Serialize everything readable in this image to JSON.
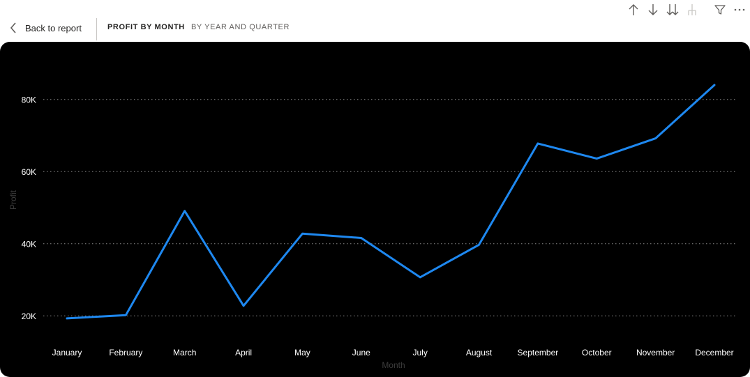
{
  "toolbar": {
    "back_label": "Back to report",
    "tabs": [
      {
        "label": "PROFIT BY MONTH",
        "active": true
      },
      {
        "label": "BY YEAR AND QUARTER",
        "active": false
      }
    ],
    "icons": [
      "arrow-up-icon",
      "arrow-down-icon",
      "double-arrow-down-icon",
      "expand-hierarchy-icon",
      "filter-icon",
      "more-options-icon"
    ]
  },
  "colors": {
    "background": "#000000",
    "line": "#1e88f0",
    "gridline": "#8a8a8a",
    "axis_text": "#ffffff",
    "axis_title": "#3c3c3c"
  },
  "chart_data": {
    "type": "line",
    "categories": [
      "January",
      "February",
      "March",
      "April",
      "May",
      "June",
      "July",
      "August",
      "September",
      "October",
      "November",
      "December"
    ],
    "series": [
      {
        "values": [
          19300,
          20200,
          49100,
          22800,
          42800,
          41600,
          30700,
          39700,
          67800,
          63600,
          69200,
          84000
        ]
      }
    ],
    "xlabel": "Month",
    "ylabel": "Profit",
    "ylim": [
      10000,
      90000
    ],
    "yticks": [
      20000,
      40000,
      60000,
      80000
    ],
    "ytick_labels": [
      "20K",
      "40K",
      "60K",
      "80K"
    ],
    "grid": true,
    "grid_style": "dotted",
    "legend": "none"
  }
}
